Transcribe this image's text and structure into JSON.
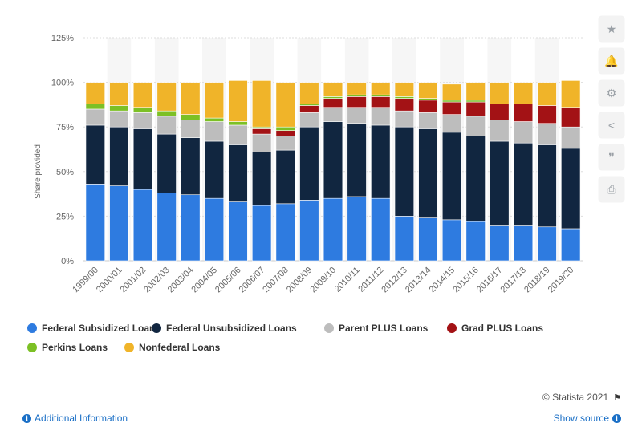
{
  "chart_data": {
    "type": "bar",
    "stacked": true,
    "ylabel": "Share provided",
    "y_ticks": [
      "0%",
      "25%",
      "50%",
      "75%",
      "100%",
      "125%"
    ],
    "ylim": [
      0,
      125
    ],
    "grid": true,
    "legend_position": "bottom",
    "categories": [
      "1999/00",
      "2000/01",
      "2001/02",
      "2002/03",
      "2003/04",
      "2004/05",
      "2005/06",
      "2006/07",
      "2007/08",
      "2008/09",
      "2009/10",
      "2010/11",
      "2011/12",
      "2012/13",
      "2013/14",
      "2014/15",
      "2015/16",
      "2016/17",
      "2017/18",
      "2018/19",
      "2019/20"
    ],
    "series": [
      {
        "name": "Federal Subsidized Loans",
        "color": "#2e7be0",
        "values": [
          43,
          42,
          40,
          38,
          37,
          35,
          33,
          31,
          32,
          34,
          35,
          36,
          35,
          25,
          24,
          23,
          22,
          20,
          20,
          19,
          18
        ]
      },
      {
        "name": "Federal Unsubsidized Loans",
        "color": "#112640",
        "values": [
          33,
          33,
          34,
          33,
          32,
          32,
          32,
          30,
          30,
          41,
          43,
          41,
          41,
          50,
          50,
          49,
          48,
          47,
          46,
          46,
          45
        ]
      },
      {
        "name": "Parent PLUS Loans",
        "color": "#bdbdbd",
        "values": [
          9,
          9,
          9,
          10,
          10,
          11,
          11,
          10,
          8,
          8,
          8,
          9,
          10,
          9,
          9,
          10,
          11,
          12,
          12,
          12,
          12
        ]
      },
      {
        "name": "Grad PLUS Loans",
        "color": "#a31215",
        "values": [
          0,
          0,
          0,
          0,
          0,
          0,
          0,
          3,
          3,
          4,
          5,
          6,
          6,
          7,
          7,
          7,
          8,
          9,
          10,
          10,
          11
        ]
      },
      {
        "name": "Perkins Loans",
        "color": "#7cc025",
        "values": [
          3,
          3,
          3,
          3,
          3,
          2,
          2,
          1,
          2,
          1,
          1,
          1,
          1,
          1,
          1,
          1,
          1,
          0,
          0,
          0,
          0
        ]
      },
      {
        "name": "Nonfederal Loans",
        "color": "#f0b429",
        "values": [
          12,
          13,
          14,
          16,
          18,
          20,
          23,
          26,
          25,
          12,
          8,
          7,
          7,
          8,
          9,
          9,
          10,
          12,
          12,
          13,
          15
        ]
      }
    ]
  },
  "footer": {
    "copyright": "© Statista 2021",
    "additional_info": "Additional Information",
    "show_source": "Show source"
  },
  "tools": {
    "star": "★",
    "bell": "🔔",
    "gear": "⚙",
    "share": "<",
    "quote": "❞",
    "print": "⎙"
  }
}
